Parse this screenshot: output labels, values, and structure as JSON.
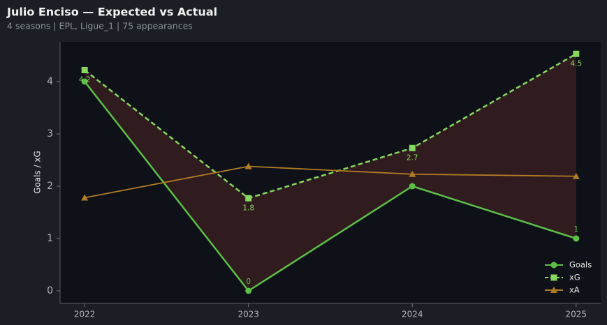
{
  "chart_data": {
    "type": "line",
    "title": "Julio Enciso — Expected vs Actual",
    "subtitle": "4 seasons | EPL, Ligue_1 | 75 appearances",
    "y_label": "Goals / xG",
    "x": [
      2022,
      2023,
      2024,
      2025
    ],
    "xlim": [
      2021.85,
      2025.15
    ],
    "xticks": [
      2022,
      2023,
      2024,
      2025
    ],
    "ylim": [
      -0.24,
      4.76
    ],
    "yticks": [
      0,
      1,
      2,
      3,
      4
    ],
    "legend": "lower right",
    "shade_between": [
      "Goals",
      "xG"
    ],
    "shade_color": "#3a1e22",
    "series": [
      {
        "name": "Goals",
        "color": "#5cbf47",
        "marker": "circle",
        "dash": false,
        "values": [
          4,
          0,
          2,
          1
        ],
        "value_labels": [
          null,
          "0",
          null,
          "1"
        ]
      },
      {
        "name": "xG",
        "color": "#86d65f",
        "marker": "square",
        "dash": true,
        "values": [
          4.22,
          1.77,
          2.73,
          4.53
        ],
        "value_labels": [
          "4.2",
          "1.8",
          "2.7",
          "4.5"
        ]
      },
      {
        "name": "xA",
        "color": "#b07c26",
        "marker": "triangle",
        "dash": false,
        "values": [
          1.78,
          2.38,
          2.23,
          2.19
        ]
      }
    ]
  }
}
